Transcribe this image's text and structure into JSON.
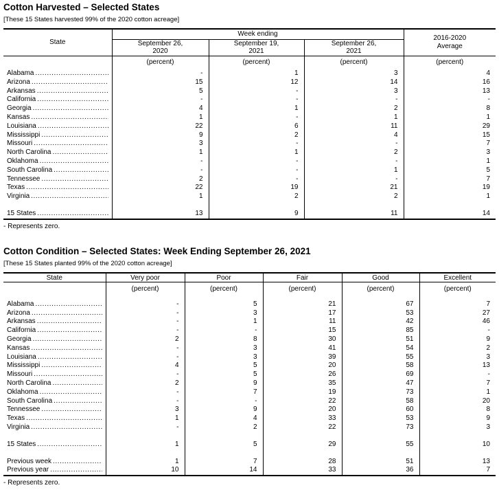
{
  "harvested": {
    "title": "Cotton Harvested – Selected States",
    "note": "[These 15 States harvested 99% of the 2020 cotton acreage]",
    "headers": {
      "state": "State",
      "week_ending": "Week ending",
      "average": "2016-2020\nAverage",
      "columns": [
        "September 26,\n2020",
        "September 19,\n2021",
        "September 26,\n2021"
      ],
      "unit": "(percent)"
    },
    "rows": [
      [
        "Alabama",
        "-",
        "1",
        "3",
        "4"
      ],
      [
        "Arizona",
        "15",
        "12",
        "14",
        "16"
      ],
      [
        "Arkansas",
        "5",
        "-",
        "3",
        "13"
      ],
      [
        "California",
        "-",
        "-",
        "-",
        "-"
      ],
      [
        "Georgia",
        "4",
        "1",
        "2",
        "8"
      ],
      [
        "Kansas",
        "1",
        "-",
        "1",
        "1"
      ],
      [
        "Louisiana",
        "22",
        "6",
        "11",
        "29"
      ],
      [
        "Mississippi",
        "9",
        "2",
        "4",
        "15"
      ],
      [
        "Missouri",
        "3",
        "-",
        "-",
        "7"
      ],
      [
        "North Carolina",
        "1",
        "1",
        "2",
        "3"
      ],
      [
        "Oklahoma",
        "-",
        "-",
        "-",
        "1"
      ],
      [
        "South Carolina",
        "-",
        "-",
        "1",
        "5"
      ],
      [
        "Tennessee",
        "2",
        "-",
        "-",
        "7"
      ],
      [
        "Texas",
        "22",
        "19",
        "21",
        "19"
      ],
      [
        "Virginia",
        "1",
        "2",
        "2",
        "1"
      ]
    ],
    "total_row": [
      "15 States",
      "13",
      "9",
      "11",
      "14"
    ],
    "footnote": "- Represents zero."
  },
  "condition": {
    "title": "Cotton Condition – Selected States: Week Ending September 26, 2021",
    "note": "[These 15 States planted 99% of the 2020 cotton acreage]",
    "headers": {
      "state": "State",
      "columns": [
        "Very poor",
        "Poor",
        "Fair",
        "Good",
        "Excellent"
      ],
      "unit": "(percent)"
    },
    "rows": [
      [
        "Alabama",
        "-",
        "5",
        "21",
        "67",
        "7"
      ],
      [
        "Arizona",
        "-",
        "3",
        "17",
        "53",
        "27"
      ],
      [
        "Arkansas",
        "-",
        "1",
        "11",
        "42",
        "46"
      ],
      [
        "California",
        "-",
        "-",
        "15",
        "85",
        "-"
      ],
      [
        "Georgia",
        "2",
        "8",
        "30",
        "51",
        "9"
      ],
      [
        "Kansas",
        "-",
        "3",
        "41",
        "54",
        "2"
      ],
      [
        "Louisiana",
        "-",
        "3",
        "39",
        "55",
        "3"
      ],
      [
        "Mississippi",
        "4",
        "5",
        "20",
        "58",
        "13"
      ],
      [
        "Missouri",
        "-",
        "5",
        "26",
        "69",
        "-"
      ],
      [
        "North Carolina",
        "2",
        "9",
        "35",
        "47",
        "7"
      ],
      [
        "Oklahoma",
        "-",
        "7",
        "19",
        "73",
        "1"
      ],
      [
        "South Carolina",
        "-",
        "-",
        "22",
        "58",
        "20"
      ],
      [
        "Tennessee",
        "3",
        "9",
        "20",
        "60",
        "8"
      ],
      [
        "Texas",
        "1",
        "4",
        "33",
        "53",
        "9"
      ],
      [
        "Virginia",
        "-",
        "2",
        "22",
        "73",
        "3"
      ]
    ],
    "total_row": [
      "15 States",
      "1",
      "5",
      "29",
      "55",
      "10"
    ],
    "extra_rows": [
      [
        "Previous week",
        "1",
        "7",
        "28",
        "51",
        "13"
      ],
      [
        "Previous year",
        "10",
        "14",
        "33",
        "36",
        "7"
      ]
    ],
    "footnote": "- Represents zero."
  }
}
